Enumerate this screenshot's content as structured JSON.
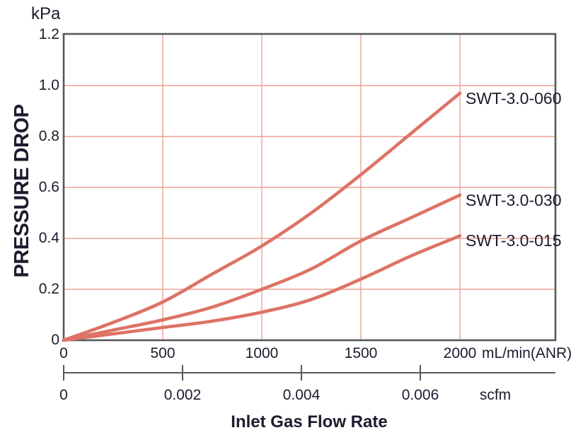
{
  "chart_data": {
    "type": "line",
    "title": "",
    "xlabel": "Inlet Gas Flow Rate",
    "ylabel": "PRESSURE DROP",
    "y_unit": "kPa",
    "x_unit_primary": "mL/min(ANR)",
    "x_unit_secondary": "scfm",
    "grid": true,
    "legend_position": "right-of-curve-ends",
    "xlim_primary": [
      0,
      2000
    ],
    "xlim_secondary": [
      0,
      0.006
    ],
    "ylim": [
      0,
      1.2
    ],
    "x": [
      0,
      250,
      500,
      750,
      1000,
      1250,
      1500,
      1750,
      2000
    ],
    "series": [
      {
        "name": "SWT-3.0-060",
        "values": [
          0,
          0.07,
          0.15,
          0.26,
          0.37,
          0.5,
          0.65,
          0.81,
          0.97
        ]
      },
      {
        "name": "SWT-3.0-030",
        "values": [
          0,
          0.04,
          0.08,
          0.13,
          0.2,
          0.28,
          0.39,
          0.48,
          0.57
        ]
      },
      {
        "name": "SWT-3.0-015",
        "values": [
          0,
          0.025,
          0.05,
          0.075,
          0.11,
          0.16,
          0.24,
          0.33,
          0.41
        ]
      }
    ],
    "y_tick_values": [
      0,
      0.2,
      0.4,
      0.6,
      0.8,
      1.0,
      1.2
    ],
    "y_tick_labels": [
      "0",
      "0.2",
      "0.4",
      "0.6",
      "0.8",
      "1.0",
      "1.2"
    ],
    "x_tick_values_primary": [
      0,
      500,
      1000,
      1500,
      2000
    ],
    "x_tick_labels_primary": [
      "0",
      "500",
      "1000",
      "1500",
      "2000"
    ],
    "x_tick_values_secondary": [
      0,
      0.002,
      0.004,
      0.006
    ],
    "x_tick_labels_secondary": [
      "0",
      "0.002",
      "0.004",
      "0.006"
    ],
    "colors": {
      "curve": "#dd7365",
      "grid": "#eea193",
      "axis": "#57585a",
      "text": "#1c1c2e"
    }
  }
}
